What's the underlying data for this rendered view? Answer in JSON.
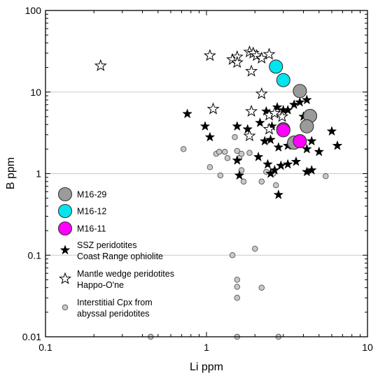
{
  "chart_data": {
    "type": "scatter",
    "title": "",
    "xlabel": "Li ppm",
    "ylabel": "B ppm",
    "xscale": "log",
    "yscale": "log",
    "xlim": [
      0.1,
      10
    ],
    "ylim": [
      0.01,
      100
    ],
    "x_tick_labels": [
      "0.1",
      "1",
      "10"
    ],
    "y_tick_labels": [
      "0.01",
      "0.1",
      "1",
      "10",
      "100"
    ],
    "grid": "horizontal major gridlines",
    "legend_position": "left",
    "series": [
      {
        "name": "Interstitial Cpx from abyssal peridotites",
        "legend_lines": [
          "Interstitial Cpx from",
          "abyssal peridotites"
        ],
        "marker": "small-circle",
        "color": "#c8c8c8",
        "points": [
          [
            0.72,
            2.0
          ],
          [
            1.05,
            1.2
          ],
          [
            1.15,
            1.75
          ],
          [
            1.2,
            1.85
          ],
          [
            1.3,
            1.85
          ],
          [
            1.22,
            0.95
          ],
          [
            1.35,
            1.55
          ],
          [
            1.5,
            2.8
          ],
          [
            1.55,
            1.9
          ],
          [
            1.6,
            1.55
          ],
          [
            1.65,
            1.75
          ],
          [
            1.65,
            1.1
          ],
          [
            1.7,
            0.8
          ],
          [
            1.85,
            1.8
          ],
          [
            2.2,
            0.8
          ],
          [
            2.35,
            1.05
          ],
          [
            2.6,
            1.0
          ],
          [
            2.7,
            0.72
          ],
          [
            5.5,
            0.93
          ],
          [
            1.45,
            0.1
          ],
          [
            2.0,
            0.12
          ],
          [
            1.55,
            0.05
          ],
          [
            1.55,
            0.041
          ],
          [
            1.55,
            0.03
          ],
          [
            2.2,
            0.04
          ],
          [
            0.45,
            0.01
          ],
          [
            1.55,
            0.01
          ],
          [
            2.8,
            0.01
          ]
        ]
      },
      {
        "name": "SSZ peridotites Coast Range ophiolite",
        "legend_lines": [
          "SSZ peridotites",
          "Coast Range ophiolite"
        ],
        "marker": "filled-star",
        "color": "#000000",
        "points": [
          [
            0.76,
            5.4
          ],
          [
            0.98,
            3.8
          ],
          [
            1.05,
            2.8
          ],
          [
            2.15,
            4.2
          ],
          [
            2.35,
            5.8
          ],
          [
            2.55,
            3.8
          ],
          [
            2.75,
            6.5
          ],
          [
            3.0,
            6.0
          ],
          [
            3.2,
            6.0
          ],
          [
            3.5,
            7.0
          ],
          [
            3.8,
            7.5
          ],
          [
            4.2,
            8.0
          ],
          [
            4.0,
            5.0
          ],
          [
            2.3,
            2.5
          ],
          [
            2.5,
            2.6
          ],
          [
            2.8,
            2.1
          ],
          [
            3.2,
            2.2
          ],
          [
            4.2,
            2.0
          ],
          [
            4.5,
            2.5
          ],
          [
            5.0,
            1.85
          ],
          [
            6.0,
            3.3
          ],
          [
            6.5,
            2.2
          ],
          [
            2.1,
            1.6
          ],
          [
            2.4,
            1.3
          ],
          [
            2.65,
            1.1
          ],
          [
            2.9,
            1.25
          ],
          [
            3.2,
            1.3
          ],
          [
            3.6,
            1.4
          ],
          [
            4.2,
            1.05
          ],
          [
            4.5,
            1.1
          ],
          [
            2.5,
            1.0
          ],
          [
            1.55,
            1.45
          ],
          [
            1.6,
            0.95
          ],
          [
            2.8,
            0.55
          ],
          [
            1.55,
            3.8
          ],
          [
            1.8,
            3.5
          ]
        ]
      },
      {
        "name": "Mantle wedge peridotites Happo-O'ne",
        "legend_lines": [
          "Mantle wedge peridotites",
          "Happo-O'ne"
        ],
        "marker": "open-star",
        "color": "#ffffff",
        "points": [
          [
            0.22,
            21
          ],
          [
            1.05,
            28
          ],
          [
            1.45,
            25
          ],
          [
            1.55,
            27
          ],
          [
            1.55,
            23
          ],
          [
            1.85,
            31
          ],
          [
            1.95,
            30
          ],
          [
            2.05,
            28
          ],
          [
            2.2,
            26
          ],
          [
            2.45,
            29
          ],
          [
            1.9,
            18
          ],
          [
            2.2,
            9.5
          ],
          [
            1.9,
            5.8
          ],
          [
            1.1,
            6.2
          ],
          [
            1.85,
            2.9
          ],
          [
            2.45,
            5.2
          ],
          [
            2.65,
            5.5
          ],
          [
            2.95,
            5.0
          ],
          [
            2.45,
            3.5
          ]
        ]
      },
      {
        "name": "M16-29",
        "legend_lines": [
          "M16-29"
        ],
        "marker": "large-circle",
        "color": "#9b9b9b",
        "points": [
          [
            3.8,
            10.3
          ],
          [
            4.4,
            5.1
          ],
          [
            4.2,
            3.8
          ],
          [
            3.5,
            2.4
          ],
          [
            3.0,
            3.5
          ]
        ]
      },
      {
        "name": "M16-12",
        "legend_lines": [
          "M16-12"
        ],
        "marker": "large-circle",
        "color": "#00e5ee",
        "points": [
          [
            2.7,
            20.5
          ],
          [
            3.0,
            14.0
          ]
        ]
      },
      {
        "name": "M16-11",
        "legend_lines": [
          "M16-11"
        ],
        "marker": "large-circle",
        "color": "#ff00ff",
        "points": [
          [
            3.0,
            3.4
          ],
          [
            3.8,
            2.5
          ]
        ]
      }
    ],
    "legend_order": [
      "M16-29",
      "M16-12",
      "M16-11",
      "SSZ peridotites Coast Range ophiolite",
      "Mantle wedge peridotites Happo-O'ne",
      "Interstitial Cpx from abyssal peridotites"
    ]
  }
}
